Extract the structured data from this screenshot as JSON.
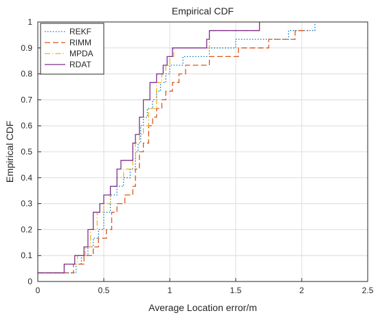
{
  "chart_data": {
    "type": "line",
    "title": "Empirical CDF",
    "xlabel": "Average Location error/m",
    "ylabel": "Empirical CDF",
    "xlim": [
      0,
      2.5
    ],
    "ylim": [
      0,
      1
    ],
    "x_ticks": [
      "0",
      "0.5",
      "1",
      "1.5",
      "2",
      "2.5"
    ],
    "y_ticks": [
      "0",
      "0.1",
      "0.2",
      "0.3",
      "0.4",
      "0.5",
      "0.6",
      "0.7",
      "0.8",
      "0.9",
      "1"
    ],
    "grid": true,
    "legend_position": "top-left",
    "step": true,
    "series": [
      {
        "name": "REKF",
        "color": "#0072BD",
        "dash": "dotted",
        "x": [
          0,
          0.29,
          0.33,
          0.38,
          0.42,
          0.46,
          0.5,
          0.55,
          0.6,
          0.65,
          0.7,
          0.74,
          0.76,
          0.78,
          0.8,
          0.83,
          0.87,
          0.9,
          0.93,
          0.97,
          1.0,
          1.05,
          1.1,
          1.2,
          1.3,
          1.4,
          1.5,
          1.7,
          1.8,
          1.9,
          2.05,
          2.1
        ],
        "y": [
          0.0333,
          0.0667,
          0.1,
          0.1333,
          0.1667,
          0.2,
          0.2667,
          0.3333,
          0.3667,
          0.4,
          0.4333,
          0.5,
          0.5333,
          0.6,
          0.6333,
          0.6667,
          0.7,
          0.7333,
          0.7667,
          0.8,
          0.8333,
          0.8333,
          0.8667,
          0.8667,
          0.9,
          0.9,
          0.9333,
          0.9333,
          0.9333,
          0.9667,
          0.9667,
          1.0
        ]
      },
      {
        "name": "RIMM",
        "color": "#D95319",
        "dash": "dashed",
        "x": [
          0,
          0.27,
          0.35,
          0.42,
          0.46,
          0.52,
          0.56,
          0.6,
          0.66,
          0.72,
          0.74,
          0.77,
          0.8,
          0.84,
          0.87,
          0.9,
          0.94,
          0.97,
          1.02,
          1.07,
          1.12,
          1.3,
          1.4,
          1.52,
          1.67,
          1.75,
          1.85,
          1.95,
          2.05
        ],
        "y": [
          0.0333,
          0.0667,
          0.1,
          0.1333,
          0.1667,
          0.2,
          0.2667,
          0.3,
          0.3333,
          0.3667,
          0.4333,
          0.5,
          0.5333,
          0.6,
          0.6333,
          0.6667,
          0.7,
          0.7333,
          0.7667,
          0.8,
          0.8333,
          0.8667,
          0.8667,
          0.9,
          0.9,
          0.9333,
          0.9333,
          0.9667,
          0.9667
        ]
      },
      {
        "name": "MPDA",
        "color": "#EDB120",
        "dash": "dashdot",
        "x": [
          0,
          0.2,
          0.3,
          0.36,
          0.4,
          0.45,
          0.5,
          0.55,
          0.6,
          0.65,
          0.72,
          0.74,
          0.77,
          0.8,
          0.84,
          0.9,
          0.94,
          0.97,
          1.0,
          1.03,
          1.25,
          1.3,
          1.5,
          1.68
        ],
        "y": [
          0.0333,
          0.0667,
          0.1,
          0.1333,
          0.2,
          0.2667,
          0.3,
          0.3667,
          0.4,
          0.4333,
          0.4667,
          0.5333,
          0.5667,
          0.6,
          0.6667,
          0.7667,
          0.8,
          0.8333,
          0.8667,
          0.9,
          0.9,
          0.9667,
          0.9667,
          1.0
        ]
      },
      {
        "name": "RDAT",
        "color": "#7E2F8E",
        "dash": "solid",
        "x": [
          0,
          0.2,
          0.28,
          0.35,
          0.38,
          0.42,
          0.47,
          0.5,
          0.55,
          0.6,
          0.63,
          0.72,
          0.74,
          0.77,
          0.8,
          0.85,
          0.9,
          0.95,
          0.98,
          1.02,
          1.28,
          1.3,
          1.5,
          1.68
        ],
        "y": [
          0.0333,
          0.0667,
          0.1,
          0.1333,
          0.2,
          0.2667,
          0.3,
          0.3333,
          0.3667,
          0.4333,
          0.4667,
          0.5333,
          0.5667,
          0.6333,
          0.7,
          0.7667,
          0.8,
          0.8333,
          0.8667,
          0.9,
          0.9333,
          0.9667,
          0.9667,
          1.0
        ]
      }
    ]
  }
}
